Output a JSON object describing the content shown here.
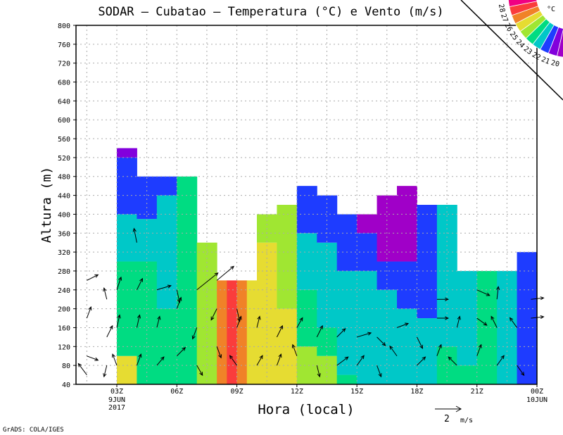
{
  "chart_data": {
    "type": "heatmap",
    "title": "SODAR – Cubatao – Temperatura (°C) e Vento (m/s)",
    "xlabel": "Hora (local)",
    "ylabel": "Altura (m)",
    "xlim": [
      0.96,
      24
    ],
    "ylim": [
      40,
      800
    ],
    "yticks": [
      40,
      80,
      120,
      160,
      200,
      240,
      280,
      320,
      360,
      400,
      440,
      480,
      520,
      560,
      600,
      640,
      680,
      720,
      760,
      800
    ],
    "xticks": [
      {
        "hour": 3,
        "label": "03Z",
        "date": "9JUN",
        "year": "2017"
      },
      {
        "hour": 6,
        "label": "06Z"
      },
      {
        "hour": 9,
        "label": "09Z"
      },
      {
        "hour": 12,
        "label": "12Z"
      },
      {
        "hour": 15,
        "label": "15Z"
      },
      {
        "hour": 18,
        "label": "18Z"
      },
      {
        "hour": 21,
        "label": "21Z"
      },
      {
        "hour": 24,
        "label": "00Z",
        "date": "10JUN"
      }
    ],
    "grid": true,
    "colorbar": {
      "unit": "°C",
      "levels": [
        20,
        21,
        22,
        23,
        24,
        25,
        26,
        27,
        28
      ],
      "colors": [
        "#a000c8",
        "#8200dc",
        "#1e3cff",
        "#00c8c8",
        "#00dc82",
        "#a0e632",
        "#e6dc32",
        "#f08228",
        "#fa3c3c",
        "#f00082"
      ],
      "placement": "top-right"
    },
    "temperature_columns": [
      {
        "hour": 3,
        "bands": [
          [
            100,
            6
          ],
          [
            300,
            4
          ],
          [
            400,
            3
          ],
          [
            520,
            2
          ],
          [
            540,
            1
          ]
        ]
      },
      {
        "hour": 4,
        "bands": [
          [
            300,
            4
          ],
          [
            390,
            3
          ],
          [
            480,
            2
          ]
        ]
      },
      {
        "hour": 5,
        "bands": [
          [
            200,
            4
          ],
          [
            440,
            3
          ],
          [
            480,
            2
          ]
        ]
      },
      {
        "hour": 6,
        "bands": [
          [
            480,
            4
          ]
        ]
      },
      {
        "hour": 7,
        "bands": [
          [
            340,
            5
          ]
        ]
      },
      {
        "hour": 8,
        "bands": [
          [
            260,
            7
          ]
        ]
      },
      {
        "hour": 8.5,
        "bands": [
          [
            260,
            8
          ]
        ]
      },
      {
        "hour": 9,
        "bands": [
          [
            260,
            7
          ]
        ]
      },
      {
        "hour": 9.5,
        "bands": [
          [
            260,
            6
          ]
        ]
      },
      {
        "hour": 10,
        "bands": [
          [
            340,
            6
          ],
          [
            400,
            5
          ]
        ]
      },
      {
        "hour": 11,
        "bands": [
          [
            200,
            6
          ],
          [
            420,
            5
          ]
        ]
      },
      {
        "hour": 12,
        "bands": [
          [
            120,
            5
          ],
          [
            240,
            4
          ],
          [
            360,
            3
          ],
          [
            460,
            2
          ]
        ]
      },
      {
        "hour": 13,
        "bands": [
          [
            100,
            5
          ],
          [
            160,
            4
          ],
          [
            340,
            3
          ],
          [
            440,
            2
          ]
        ]
      },
      {
        "hour": 14,
        "bands": [
          [
            60,
            4
          ],
          [
            280,
            3
          ],
          [
            400,
            2
          ]
        ]
      },
      {
        "hour": 15,
        "bands": [
          [
            280,
            3
          ],
          [
            360,
            2
          ],
          [
            400,
            0
          ]
        ]
      },
      {
        "hour": 16,
        "bands": [
          [
            240,
            3
          ],
          [
            300,
            2
          ],
          [
            440,
            0
          ]
        ]
      },
      {
        "hour": 17,
        "bands": [
          [
            200,
            3
          ],
          [
            300,
            2
          ],
          [
            460,
            0
          ]
        ]
      },
      {
        "hour": 18,
        "bands": [
          [
            180,
            3
          ],
          [
            420,
            2
          ]
        ]
      },
      {
        "hour": 19,
        "bands": [
          [
            120,
            4
          ],
          [
            420,
            3
          ]
        ]
      },
      {
        "hour": 20,
        "bands": [
          [
            80,
            4
          ],
          [
            280,
            3
          ]
        ]
      },
      {
        "hour": 21,
        "bands": [
          [
            280,
            4
          ]
        ]
      },
      {
        "hour": 22,
        "bands": [
          [
            280,
            3
          ]
        ]
      },
      {
        "hour": 23,
        "bands": [
          [
            320,
            2
          ]
        ]
      },
      {
        "hour": 24,
        "bands": [
          [
            340,
            2
          ]
        ]
      }
    ],
    "wind_vectors": [
      [
        1.5,
        60,
        -0.6,
        0.8
      ],
      [
        1.5,
        100,
        0.8,
        -0.3
      ],
      [
        1.5,
        180,
        0.3,
        0.8
      ],
      [
        1.5,
        260,
        0.8,
        0.4
      ],
      [
        2.5,
        80,
        -0.2,
        -0.8
      ],
      [
        2.5,
        140,
        0.4,
        0.8
      ],
      [
        2.5,
        220,
        -0.2,
        0.8
      ],
      [
        3,
        80,
        -0.3,
        0.8
      ],
      [
        3,
        160,
        0.2,
        0.9
      ],
      [
        3,
        240,
        0.3,
        0.9
      ],
      [
        4,
        80,
        0.3,
        0.8
      ],
      [
        4,
        160,
        0.2,
        0.9
      ],
      [
        4,
        240,
        0.4,
        0.8
      ],
      [
        4,
        340,
        -0.2,
        1.0
      ],
      [
        5,
        80,
        0.5,
        0.6
      ],
      [
        5,
        160,
        0.2,
        0.8
      ],
      [
        5,
        240,
        1.0,
        0.3
      ],
      [
        6,
        100,
        0.6,
        0.6
      ],
      [
        6,
        200,
        0.3,
        0.8
      ],
      [
        6,
        240,
        0.2,
        -0.9
      ],
      [
        7,
        80,
        0.4,
        -0.7
      ],
      [
        7,
        160,
        -0.3,
        -0.8
      ],
      [
        7,
        240,
        1.5,
        1.2
      ],
      [
        8,
        120,
        0.3,
        -0.8
      ],
      [
        8,
        200,
        -0.4,
        -0.8
      ],
      [
        8,
        260,
        1.2,
        1.0
      ],
      [
        9,
        80,
        -0.5,
        0.7
      ],
      [
        9,
        160,
        0.3,
        0.8
      ],
      [
        9,
        200,
        0.2,
        -0.9
      ],
      [
        10,
        80,
        0.4,
        0.7
      ],
      [
        10,
        160,
        0.2,
        0.8
      ],
      [
        11,
        80,
        0.3,
        0.8
      ],
      [
        11,
        140,
        0.4,
        0.8
      ],
      [
        12,
        100,
        -0.3,
        0.8
      ],
      [
        12,
        160,
        0.4,
        0.7
      ],
      [
        13,
        80,
        0.2,
        -0.8
      ],
      [
        13,
        140,
        0.4,
        0.8
      ],
      [
        14,
        80,
        0.8,
        0.6
      ],
      [
        14,
        140,
        0.6,
        0.6
      ],
      [
        15,
        80,
        0.5,
        0.7
      ],
      [
        15,
        140,
        1.0,
        0.3
      ],
      [
        16,
        80,
        0.3,
        -0.8
      ],
      [
        16,
        140,
        0.6,
        -0.6
      ],
      [
        17,
        100,
        -0.5,
        0.7
      ],
      [
        17,
        160,
        0.8,
        0.3
      ],
      [
        18,
        80,
        0.6,
        0.6
      ],
      [
        18,
        140,
        0.4,
        -0.8
      ],
      [
        19,
        100,
        0.3,
        0.8
      ],
      [
        19,
        180,
        0.8,
        0.0
      ],
      [
        19,
        220,
        0.8,
        0.0
      ],
      [
        20,
        80,
        -0.6,
        0.6
      ],
      [
        20,
        160,
        0.2,
        0.8
      ],
      [
        21,
        100,
        0.3,
        0.8
      ],
      [
        21,
        180,
        0.7,
        -0.5
      ],
      [
        21,
        240,
        0.9,
        -0.4
      ],
      [
        22,
        80,
        0.5,
        0.7
      ],
      [
        22,
        160,
        -0.4,
        0.8
      ],
      [
        22,
        220,
        0.1,
        0.9
      ],
      [
        23,
        80,
        0.5,
        -0.7
      ],
      [
        23,
        160,
        -0.5,
        0.7
      ],
      [
        23.7,
        180,
        0.9,
        0.1
      ],
      [
        23.7,
        220,
        0.9,
        0.1
      ]
    ],
    "reference_vector": {
      "value": "2",
      "unit": "m/s"
    }
  },
  "footer": "GrADS: COLA/IGES"
}
